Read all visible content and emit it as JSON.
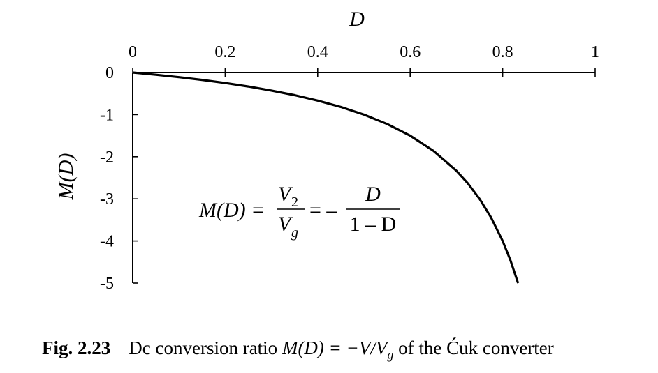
{
  "chart_data": {
    "type": "line",
    "xlabel": "D",
    "ylabel": "M(D)",
    "x_ticks": [
      "0",
      "0.2",
      "0.4",
      "0.6",
      "0.8",
      "1"
    ],
    "y_ticks": [
      "0",
      "-1",
      "-2",
      "-3",
      "-4",
      "-5"
    ],
    "xlim": [
      0,
      1
    ],
    "ylim": [
      -5,
      0
    ],
    "x_axis_position": "top",
    "grid": false,
    "series": [
      {
        "x": [
          0,
          0.05,
          0.1,
          0.15,
          0.2,
          0.25,
          0.3,
          0.35,
          0.4,
          0.45,
          0.5,
          0.55,
          0.6,
          0.65,
          0.7,
          0.725,
          0.75,
          0.775,
          0.8,
          0.8167,
          0.8333
        ],
        "y": [
          0,
          -0.053,
          -0.111,
          -0.176,
          -0.25,
          -0.333,
          -0.429,
          -0.538,
          -0.667,
          -0.818,
          -1.0,
          -1.222,
          -1.5,
          -1.857,
          -2.333,
          -2.636,
          -3.0,
          -3.444,
          -4.0,
          -4.455,
          -5.0
        ]
      }
    ],
    "annotation": {
      "lhs": "M(D) =",
      "frac1_num": "V",
      "frac1_num_sub": "2",
      "frac1_den": "V",
      "frac1_den_sub": "g",
      "mid": "= –",
      "frac2_num": "D",
      "frac2_den": "1 – D"
    }
  },
  "caption": {
    "figure_number": "Fig. 2.23",
    "text_prefix": "Dc conversion ratio ",
    "expr_main": "M",
    "expr_paren": "(D) = −V/V",
    "expr_sub": "g",
    "text_suffix": " of the Ćuk converter"
  }
}
